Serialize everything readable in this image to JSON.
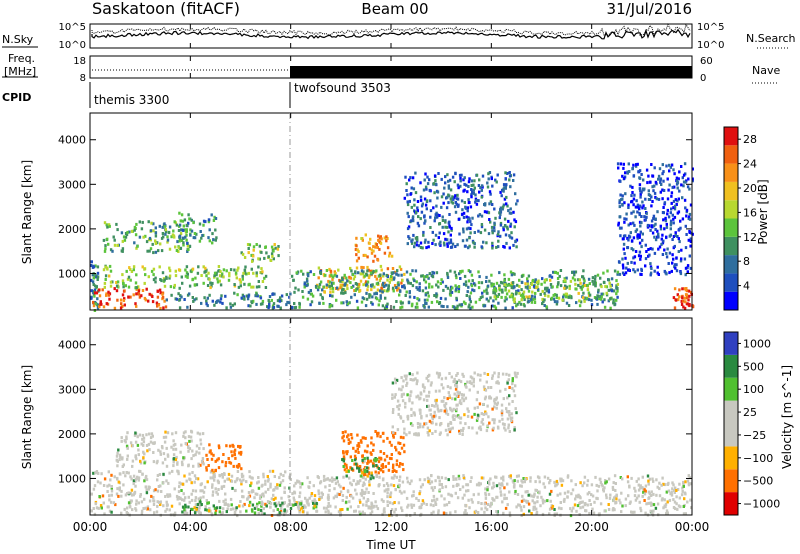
{
  "header": {
    "station": "Saskatoon (fitACF)",
    "beam": "Beam 00",
    "date": "31/Jul/2016"
  },
  "noise_panel": {
    "left_label": "N.Sky",
    "right_label": "N.Search",
    "left_ticks": [
      "10^5",
      "10^0"
    ],
    "right_ticks": [
      "10^5",
      "10^0"
    ]
  },
  "freq_panel": {
    "left_label_line1": "Freq.",
    "left_label_line2": "[MHz]",
    "right_label": "Nave",
    "left_ticks": [
      "18",
      "8"
    ],
    "right_ticks": [
      "60",
      "0"
    ]
  },
  "cpid_panel": {
    "label": "CPID",
    "modes": [
      {
        "name": "themis 3300",
        "start_hour": 0,
        "end_hour": 8
      },
      {
        "name": "twofsound 3503",
        "start_hour": 8,
        "end_hour": 24
      }
    ]
  },
  "chart_data": [
    {
      "type": "heatmap",
      "title": "",
      "xlabel": "Time UT",
      "ylabel": "Slant Range [km]",
      "x_ticks": [
        "00:00",
        "04:00",
        "08:00",
        "12:00",
        "16:00",
        "20:00",
        "00:00"
      ],
      "xlim_hours": [
        0,
        24
      ],
      "y_ticks": [
        "1000",
        "2000",
        "3000",
        "4000"
      ],
      "ylim": [
        180,
        4600
      ],
      "colorbar": {
        "label": "Power [dB]",
        "ticks": [
          "4",
          "8",
          "12",
          "16",
          "20",
          "24",
          "28"
        ],
        "range": [
          0,
          30
        ],
        "colors": [
          "#0000ff",
          "#1f4fbe",
          "#2f6e9e",
          "#3f9060",
          "#5cc43c",
          "#b8d830",
          "#f0c020",
          "#f89018",
          "#f06010",
          "#e01010"
        ]
      },
      "regions": [
        {
          "t0": 0.0,
          "t1": 0.3,
          "r0": 200,
          "r1": 1300,
          "level": 8
        },
        {
          "t0": 0.0,
          "t1": 3.0,
          "r0": 250,
          "r1": 700,
          "level": 26
        },
        {
          "t0": 0.5,
          "t1": 7.0,
          "r0": 700,
          "r1": 1200,
          "level": 14
        },
        {
          "t0": 0.5,
          "t1": 4.0,
          "r0": 1500,
          "r1": 2200,
          "level": 12
        },
        {
          "t0": 3.5,
          "t1": 5.0,
          "r0": 1700,
          "r1": 2400,
          "level": 10
        },
        {
          "t0": 6.0,
          "t1": 7.5,
          "r0": 1300,
          "r1": 1700,
          "level": 14
        },
        {
          "t0": 3.0,
          "t1": 8.0,
          "r0": 250,
          "r1": 600,
          "level": 8
        },
        {
          "t0": 9.0,
          "t1": 12.5,
          "r0": 600,
          "r1": 1200,
          "level": 20
        },
        {
          "t0": 10.5,
          "t1": 12.0,
          "r0": 1300,
          "r1": 1900,
          "level": 22
        },
        {
          "t0": 12.5,
          "t1": 17.0,
          "r0": 1600,
          "r1": 3300,
          "level": 6
        },
        {
          "t0": 8.0,
          "t1": 21.0,
          "r0": 250,
          "r1": 1100,
          "level": 10
        },
        {
          "t0": 16.0,
          "t1": 21.0,
          "r0": 400,
          "r1": 900,
          "level": 14
        },
        {
          "t0": 21.0,
          "t1": 24.0,
          "r0": 1000,
          "r1": 3500,
          "level": 4
        },
        {
          "t0": 23.2,
          "t1": 24.0,
          "r0": 250,
          "r1": 700,
          "level": 26
        }
      ]
    },
    {
      "type": "heatmap",
      "title": "",
      "xlabel": "Time UT",
      "ylabel": "Slant Range [km]",
      "x_ticks": [
        "00:00",
        "04:00",
        "08:00",
        "12:00",
        "16:00",
        "20:00",
        "00:00"
      ],
      "xlim_hours": [
        0,
        24
      ],
      "y_ticks": [
        "1000",
        "2000",
        "3000",
        "4000"
      ],
      "ylim": [
        180,
        4600
      ],
      "colorbar": {
        "label": "Velocity [m s^-1]",
        "ticks": [
          "1000",
          "500",
          "100",
          "25",
          "−25",
          "−100",
          "−500",
          "−1000"
        ],
        "range": [
          -1000,
          1000
        ],
        "colors": [
          "#e00000",
          "#ff7000",
          "#ffb000",
          "#c8c8c0",
          "#c8c8c0",
          "#50c030",
          "#2a8a40",
          "#3040c0"
        ]
      },
      "regions": [
        {
          "t0": 0.0,
          "t1": 8.0,
          "r0": 200,
          "r1": 1200,
          "vel": 0
        },
        {
          "t0": 1.0,
          "t1": 4.5,
          "r0": 1300,
          "r1": 2100,
          "vel": 0
        },
        {
          "t0": 4.5,
          "t1": 6.0,
          "r0": 1200,
          "r1": 1800,
          "vel": -300
        },
        {
          "t0": 8.0,
          "t1": 24.0,
          "r0": 200,
          "r1": 1100,
          "vel": 0
        },
        {
          "t0": 10.0,
          "t1": 12.5,
          "r0": 1100,
          "r1": 2100,
          "vel": -300
        },
        {
          "t0": 10.0,
          "t1": 11.5,
          "r0": 1000,
          "r1": 1500,
          "vel": 100
        },
        {
          "t0": 12.0,
          "t1": 17.0,
          "r0": 2000,
          "r1": 3400,
          "vel": 0
        },
        {
          "t0": 3.5,
          "t1": 9.0,
          "r0": 250,
          "r1": 500,
          "vel": 100
        }
      ]
    }
  ]
}
